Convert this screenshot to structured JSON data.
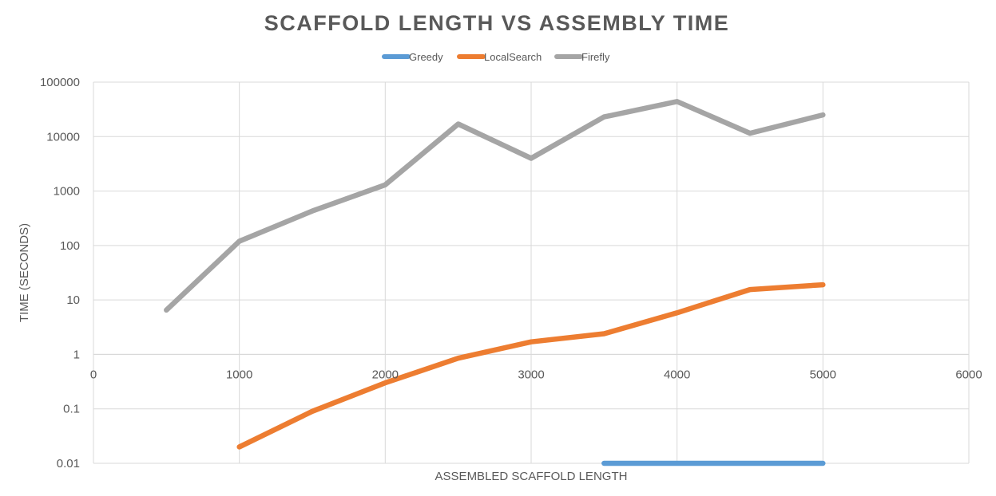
{
  "chart_data": {
    "type": "line",
    "title": "SCAFFOLD LENGTH VS ASSEMBLY TIME",
    "xlabel": "ASSEMBLED SCAFFOLD LENGTH",
    "ylabel": "TIME (SECONDS)",
    "xlim": [
      0,
      6000
    ],
    "ylim": [
      0.01,
      100000
    ],
    "yscale": "log",
    "x_axis_crosses_y_at": 1,
    "xticks": [
      0,
      1000,
      2000,
      3000,
      4000,
      5000,
      6000
    ],
    "yticks": [
      0.01,
      0.1,
      1,
      10,
      100,
      1000,
      10000,
      100000
    ],
    "xtick_labels": [
      "0",
      "1000",
      "2000",
      "3000",
      "4000",
      "5000",
      "6000"
    ],
    "ytick_labels": [
      "0.01",
      "0.1",
      "1",
      "10",
      "100",
      "1000",
      "10000",
      "100000"
    ],
    "grid": true,
    "legend_position": "top-center",
    "series": [
      {
        "name": "Greedy",
        "color": "#5b9bd5",
        "x": [
          3500,
          4000,
          4500,
          5000
        ],
        "values": [
          0.01,
          0.01,
          0.01,
          0.01
        ]
      },
      {
        "name": "LocalSearch",
        "color": "#ed7d31",
        "x": [
          1000,
          1500,
          2000,
          2500,
          3000,
          3500,
          4000,
          4500,
          5000
        ],
        "values": [
          0.02,
          0.09,
          0.3,
          0.85,
          1.7,
          2.4,
          5.8,
          15.5,
          19
        ]
      },
      {
        "name": "Firefly",
        "color": "#a5a5a5",
        "x": [
          500,
          1000,
          1500,
          2000,
          2500,
          3000,
          3500,
          4000,
          4500,
          5000
        ],
        "values": [
          6.5,
          120,
          430,
          1300,
          17000,
          4000,
          23000,
          44000,
          11500,
          25000
        ]
      }
    ]
  }
}
